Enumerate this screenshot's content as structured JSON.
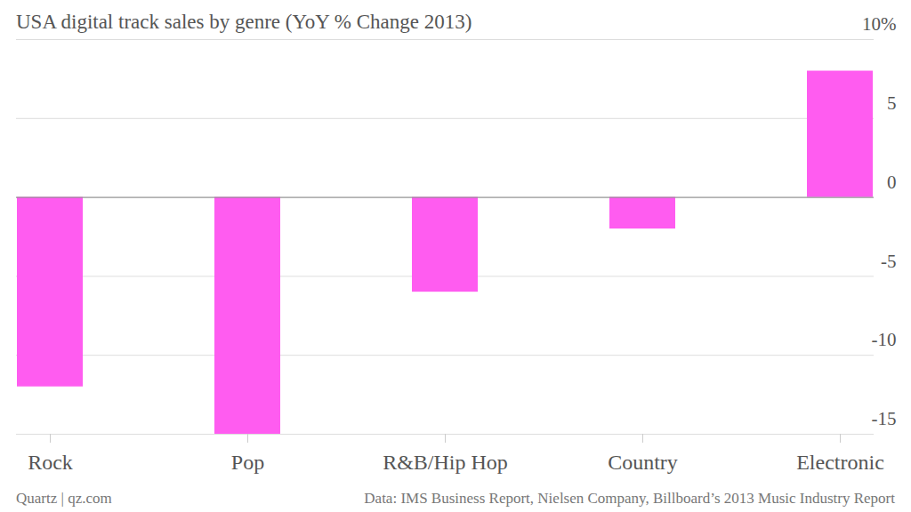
{
  "chart_data": {
    "type": "bar",
    "title": "USA digital track sales by genre (YoY % Change 2013)",
    "categories": [
      "Rock",
      "Pop",
      "R&B/Hip Hop",
      "Country",
      "Electronic"
    ],
    "values": [
      -12,
      -15,
      -6,
      -2,
      8
    ],
    "color": "#ff5cf0",
    "ylim": [
      -15,
      10
    ],
    "yticks": [
      -15,
      -10,
      -5,
      0,
      5,
      {
        "value": 10,
        "label": "10%"
      }
    ],
    "grid": true,
    "caption": "Quartz | qz.com",
    "source": "Data: IMS Business Report, Nielsen Company, Billboard’s 2013 Music Industry Report"
  }
}
